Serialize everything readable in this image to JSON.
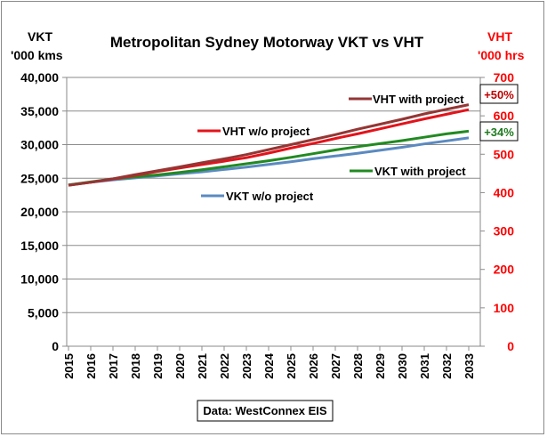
{
  "chart_data": {
    "type": "line",
    "title": "Metropolitan  Sydney Motorway VKT vs VHT",
    "left_axis": {
      "label_line1": "VKT",
      "label_line2": "'000 kms",
      "ylim": [
        0,
        40000
      ],
      "ticks": [
        "0",
        "5,000",
        "10,000",
        "15,000",
        "20,000",
        "25,000",
        "30,000",
        "35,000",
        "40,000"
      ]
    },
    "right_axis": {
      "label_line1": "VHT",
      "label_line2": "'000 hrs",
      "ylim": [
        0,
        700
      ],
      "ticks": [
        "0",
        "100",
        "200",
        "300",
        "400",
        "500",
        "600",
        "700"
      ],
      "color": "#ff0000"
    },
    "x": [
      "2015",
      "2016",
      "2017",
      "2018",
      "2019",
      "2020",
      "2021",
      "2022",
      "2023",
      "2024",
      "2025",
      "2026",
      "2027",
      "2028",
      "2029",
      "2030",
      "2031",
      "2032",
      "2033"
    ],
    "series": [
      {
        "name": "VHT with project",
        "axis": "right",
        "color": "#943634",
        "values": [
          419,
          427,
          436,
          447,
          457,
          467,
          478,
          488,
          499,
          512,
          525,
          538,
          551,
          565,
          578,
          591,
          605,
          617,
          629
        ]
      },
      {
        "name": "VHT w/o project",
        "axis": "right",
        "color": "#e3131b",
        "values": [
          419,
          427,
          435,
          445,
          455,
          464,
          473,
          482,
          491,
          503,
          516,
          528,
          541,
          553,
          566,
          579,
          592,
          604,
          616
        ]
      },
      {
        "name": "VKT with project",
        "axis": "left",
        "color": "#218a21",
        "values": [
          24000,
          24450,
          24900,
          25200,
          25500,
          25850,
          26250,
          26700,
          27150,
          27600,
          28100,
          28650,
          29200,
          29700,
          30150,
          30600,
          31100,
          31600,
          32000
        ]
      },
      {
        "name": "VKT w/o project",
        "axis": "left",
        "color": "#5b8ac0",
        "values": [
          24000,
          24400,
          24750,
          25050,
          25350,
          25650,
          25950,
          26300,
          26650,
          27050,
          27450,
          27900,
          28300,
          28700,
          29150,
          29600,
          30100,
          30550,
          31000
        ]
      }
    ],
    "series_labels": {
      "vht_with": "VHT with project",
      "vht_without": "VHT w/o project",
      "vkt_with": "VKT with project",
      "vkt_without": "VKT w/o project"
    },
    "annotations": [
      {
        "text": "+50%",
        "color": "#c00000"
      },
      {
        "text": "+34%",
        "color": "#1f7a1f"
      }
    ],
    "source_note": "Data: WestConnex EIS",
    "grid": "horizontal"
  }
}
